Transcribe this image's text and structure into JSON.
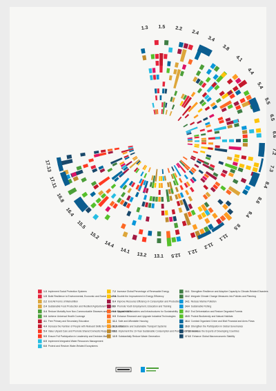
{
  "targets": [
    {
      "label": "1.3",
      "description": "Implement Social Protection Systems"
    },
    {
      "label": "1.5",
      "description": "Build Resilience to Environmental, Economic and Social Disasters"
    },
    {
      "label": "2.2",
      "description": "End All Forms of Malnutrition"
    },
    {
      "label": "2.4",
      "description": "Sustainable Food Production and Resilient Agricultural Practices"
    },
    {
      "label": "3.4",
      "description": "Reduce Mortality from Non-Communicable Diseases and Promote Mental Health"
    },
    {
      "label": "3.8",
      "description": "Achieve Universal Health Coverage"
    },
    {
      "label": "4.1",
      "description": "Free Primary and Secondary Education"
    },
    {
      "label": "4.4",
      "description": "Increase the Number of People with Relevant Skills for Financial Success"
    },
    {
      "label": "5.4",
      "description": "Value Unpaid Care and Promote Shared Domestic Responsibilities"
    },
    {
      "label": "5.5",
      "description": "Ensure Full Participation in Leadership and Decision-Making"
    },
    {
      "label": "6.5",
      "description": "Implement Integrated Water Resources Management"
    },
    {
      "label": "6.6",
      "description": "Protect and Restore Water-Related Ecosystems"
    },
    {
      "label": "7.2",
      "description": "Increase Global Percentage of Renewable Energy"
    },
    {
      "label": "7.3",
      "description": "Double the Improvement in Energy Efficiency"
    },
    {
      "label": "8.4",
      "description": "Improve Resource Efficiency in Consumption and Production"
    },
    {
      "label": "8.6",
      "description": "Promote Youth Employment, Education and Training"
    },
    {
      "label": "9.4",
      "description": "Upgrade All Industries and Infrastructures for Sustainability"
    },
    {
      "label": "9.5",
      "description": "Enhance Research and Upgrade Industrial Technologies"
    },
    {
      "label": "11.1",
      "description": "Safe and Affordable Housing"
    },
    {
      "label": "11.2",
      "description": "Affordable and Sustainable Transport Systems"
    },
    {
      "label": "12.1",
      "description": "Implement the 10-Year Sustainable Consumption and Production Framework"
    },
    {
      "label": "12.5",
      "description": "Substantially Reduce Waste Generation"
    },
    {
      "label": "13.1",
      "description": "Strengthen Resilience and Adaptive Capacity to Climate-Related Disasters"
    },
    {
      "label": "13.2",
      "description": "Integrate Climate Change Measures into Policies and Planning"
    },
    {
      "label": "14.1",
      "description": "Reduce Marine Pollution"
    },
    {
      "label": "14.4",
      "description": "Sustainable Fishing"
    },
    {
      "label": "15.2",
      "description": "End Deforestation and Restore Degraded Forests"
    },
    {
      "label": "15.5",
      "description": "Protect Biodiversity and Natural Habitats"
    },
    {
      "label": "16.4",
      "description": "Combat Organized Crime and Illicit Financial and Arms Flows"
    },
    {
      "label": "16.8",
      "description": "Strengthen the Participation in Global Governance"
    },
    {
      "label": "17.11",
      "description": "Increase the Exports of Developing Countries"
    },
    {
      "label": "17.13",
      "description": "Enhance Global Macroeconomic Stability"
    }
  ]
}
